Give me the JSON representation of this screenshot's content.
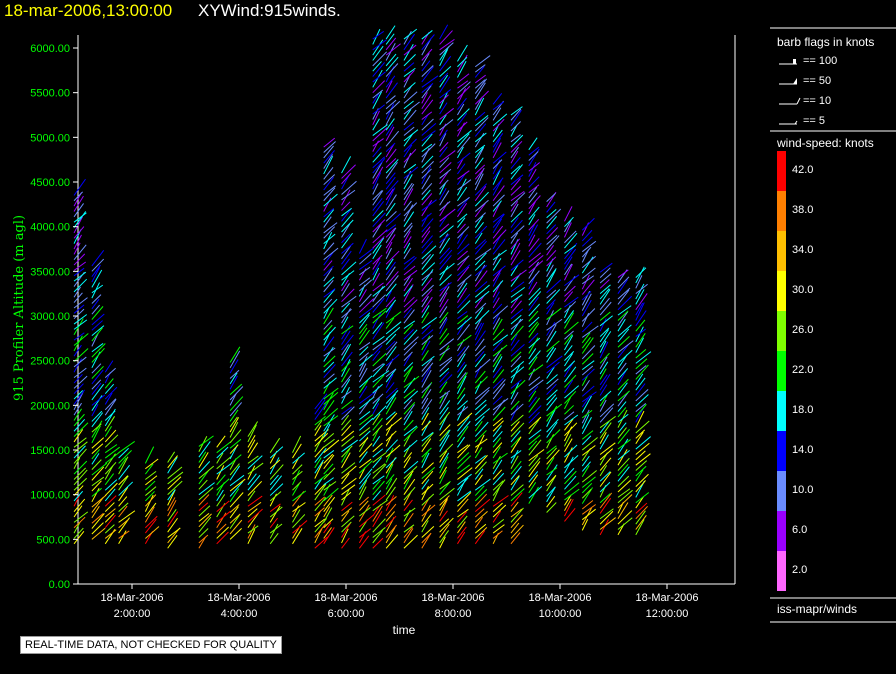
{
  "header": {
    "timestamp": "18-mar-2006,13:00:00",
    "product": "XYWind:915winds."
  },
  "footer": {
    "qc_note": "REAL-TIME DATA, NOT CHECKED FOR QUALITY",
    "source": "iss-mapr/winds"
  },
  "legend": {
    "barb_title": "barb flags in knots",
    "barb_flags": [
      "== 100",
      "== 50",
      "== 10",
      "== 5"
    ],
    "scale_title": "wind-speed: knots",
    "scale_labels": [
      "42.0",
      "38.0",
      "34.0",
      "30.0",
      "26.0",
      "22.0",
      "18.0",
      "14.0",
      "10.0",
      "6.0",
      "2.0"
    ],
    "scale_colors": [
      "#ff0000",
      "#ff7f00",
      "#ffbf00",
      "#ffff00",
      "#7fff00",
      "#00ff00",
      "#00ffff",
      "#0000ff",
      "#6a8cff",
      "#9900ff",
      "#ff66ff"
    ]
  },
  "chart_data": {
    "type": "scatter",
    "title": "XYWind:915winds.",
    "xlabel": "time",
    "ylabel": "915 Profiler Altitude (m agl)",
    "ylim": [
      0,
      6200
    ],
    "x_tick_labels": [
      {
        "date": "18-Mar-2006",
        "time": "2:00:00"
      },
      {
        "date": "18-Mar-2006",
        "time": "4:00:00"
      },
      {
        "date": "18-Mar-2006",
        "time": "6:00:00"
      },
      {
        "date": "18-Mar-2006",
        "time": "8:00:00"
      },
      {
        "date": "18-Mar-2006",
        "time": "10:00:00"
      },
      {
        "date": "18-Mar-2006",
        "time": "12:00:00"
      }
    ],
    "y_ticks": [
      "0.00",
      "500.00",
      "1000.00",
      "1500.00",
      "2000.00",
      "2500.00",
      "3000.00",
      "3500.00",
      "4000.00",
      "4500.00",
      "5000.00",
      "5500.00",
      "6000.00"
    ],
    "profiles": [
      {
        "time": "00:55",
        "bottom": 450,
        "top": 4400
      },
      {
        "time": "01:15",
        "bottom": 500,
        "top": 3600
      },
      {
        "time": "01:30",
        "bottom": 450,
        "top": 2400
      },
      {
        "time": "01:45",
        "bottom": 450,
        "top": 1500
      },
      {
        "time": "02:15",
        "bottom": 450,
        "top": 1400
      },
      {
        "time": "02:40",
        "bottom": 400,
        "top": 1400
      },
      {
        "time": "03:15",
        "bottom": 400,
        "top": 1550
      },
      {
        "time": "03:35",
        "bottom": 450,
        "top": 1550
      },
      {
        "time": "03:50",
        "bottom": 500,
        "top": 2500
      },
      {
        "time": "04:10",
        "bottom": 450,
        "top": 1650
      },
      {
        "time": "04:35",
        "bottom": 450,
        "top": 1500
      },
      {
        "time": "05:00",
        "bottom": 450,
        "top": 1500
      },
      {
        "time": "05:25",
        "bottom": 400,
        "top": 2000
      },
      {
        "time": "05:35",
        "bottom": 450,
        "top": 4900
      },
      {
        "time": "05:55",
        "bottom": 400,
        "top": 4600
      },
      {
        "time": "06:15",
        "bottom": 400,
        "top": 3700
      },
      {
        "time": "06:30",
        "bottom": 400,
        "top": 6150
      },
      {
        "time": "06:45",
        "bottom": 400,
        "top": 6150
      },
      {
        "time": "07:05",
        "bottom": 400,
        "top": 6150
      },
      {
        "time": "07:25",
        "bottom": 400,
        "top": 6150
      },
      {
        "time": "07:45",
        "bottom": 400,
        "top": 6150
      },
      {
        "time": "08:05",
        "bottom": 450,
        "top": 5900
      },
      {
        "time": "08:25",
        "bottom": 450,
        "top": 5800
      },
      {
        "time": "08:45",
        "bottom": 450,
        "top": 5400
      },
      {
        "time": "09:05",
        "bottom": 450,
        "top": 5300
      },
      {
        "time": "09:25",
        "bottom": 900,
        "top": 4900
      },
      {
        "time": "09:45",
        "bottom": 800,
        "top": 4300
      },
      {
        "time": "10:05",
        "bottom": 700,
        "top": 4100
      },
      {
        "time": "10:25",
        "bottom": 600,
        "top": 4000
      },
      {
        "time": "10:45",
        "bottom": 550,
        "top": 3500
      },
      {
        "time": "11:05",
        "bottom": 550,
        "top": 3450
      },
      {
        "time": "11:25",
        "bottom": 550,
        "top": 3450
      }
    ]
  }
}
